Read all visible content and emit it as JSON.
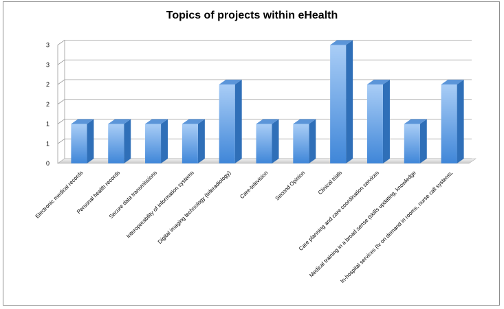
{
  "chart_data": {
    "type": "bar",
    "title": "Topics of projects within eHealth",
    "xlabel": "",
    "ylabel": "",
    "ylim": [
      0,
      3
    ],
    "y_tick_labels": [
      "0",
      "1",
      "1",
      "2",
      "2",
      "3",
      "3"
    ],
    "grid": true,
    "legend": "none",
    "bar_color": "#6ea8e8",
    "categories": [
      "Electronic medical records",
      "Personal health records",
      "Secure data transmissions",
      "Interoperability of information systems",
      "Digital imaging technology (teleradiology)",
      "Care-television",
      "Second Opinion",
      "Clinical trials",
      "Care planning and care coordination services",
      "Medical training in a broad sense (skills updating, knowledge",
      "In-hospital services (tv on demand in rooms, nurse call systems,"
    ],
    "values": [
      1,
      1,
      1,
      1,
      2,
      1,
      1,
      3,
      2,
      1,
      2
    ]
  }
}
